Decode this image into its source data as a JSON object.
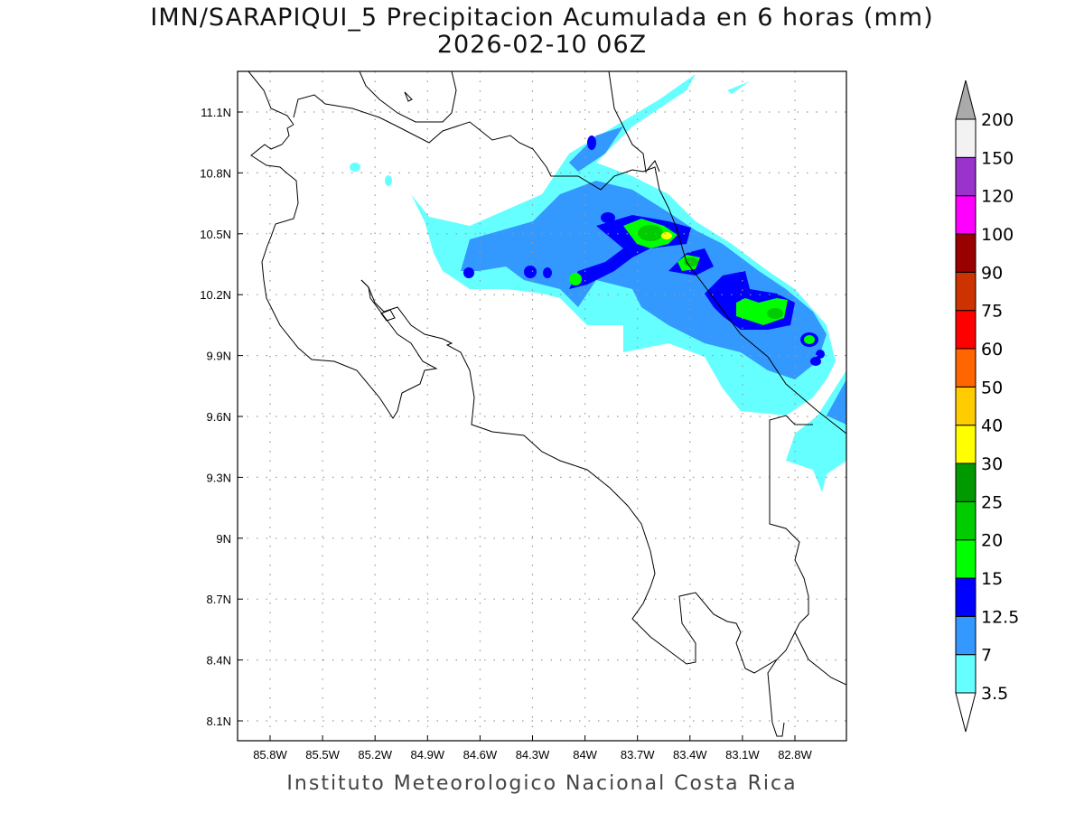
{
  "title": {
    "line1": "IMN/SARAPIQUI_5 Precipitacion Acumulada en 6 horas (mm)",
    "line2": "2026-02-10 06Z"
  },
  "credit": "Instituto Meteorologico Nacional Costa Rica",
  "map": {
    "x_ticks": [
      "85.8W",
      "85.5W",
      "85.2W",
      "84.9W",
      "84.6W",
      "84.3W",
      "84W",
      "83.7W",
      "83.4W",
      "83.1W",
      "82.8W"
    ],
    "y_ticks": [
      "11.1N",
      "10.8N",
      "10.5N",
      "10.2N",
      "9.9N",
      "9.6N",
      "9.3N",
      "9N",
      "8.7N",
      "8.4N",
      "8.1N"
    ]
  },
  "colorbar": {
    "labels": [
      "3.5",
      "7",
      "12.5",
      "15",
      "20",
      "25",
      "30",
      "40",
      "50",
      "60",
      "75",
      "90",
      "100",
      "120",
      "150",
      "200"
    ],
    "colors": [
      "#66ffff",
      "#3399ff",
      "#0000ff",
      "#00ff00",
      "#00cc00",
      "#009900",
      "#ffff00",
      "#ffcc00",
      "#ff6600",
      "#ff0000",
      "#cc3300",
      "#990000",
      "#ff00ff",
      "#9933cc",
      "#f2f2f2"
    ],
    "over_color": "#aaaaaa",
    "under_color": "#ffffff"
  }
}
